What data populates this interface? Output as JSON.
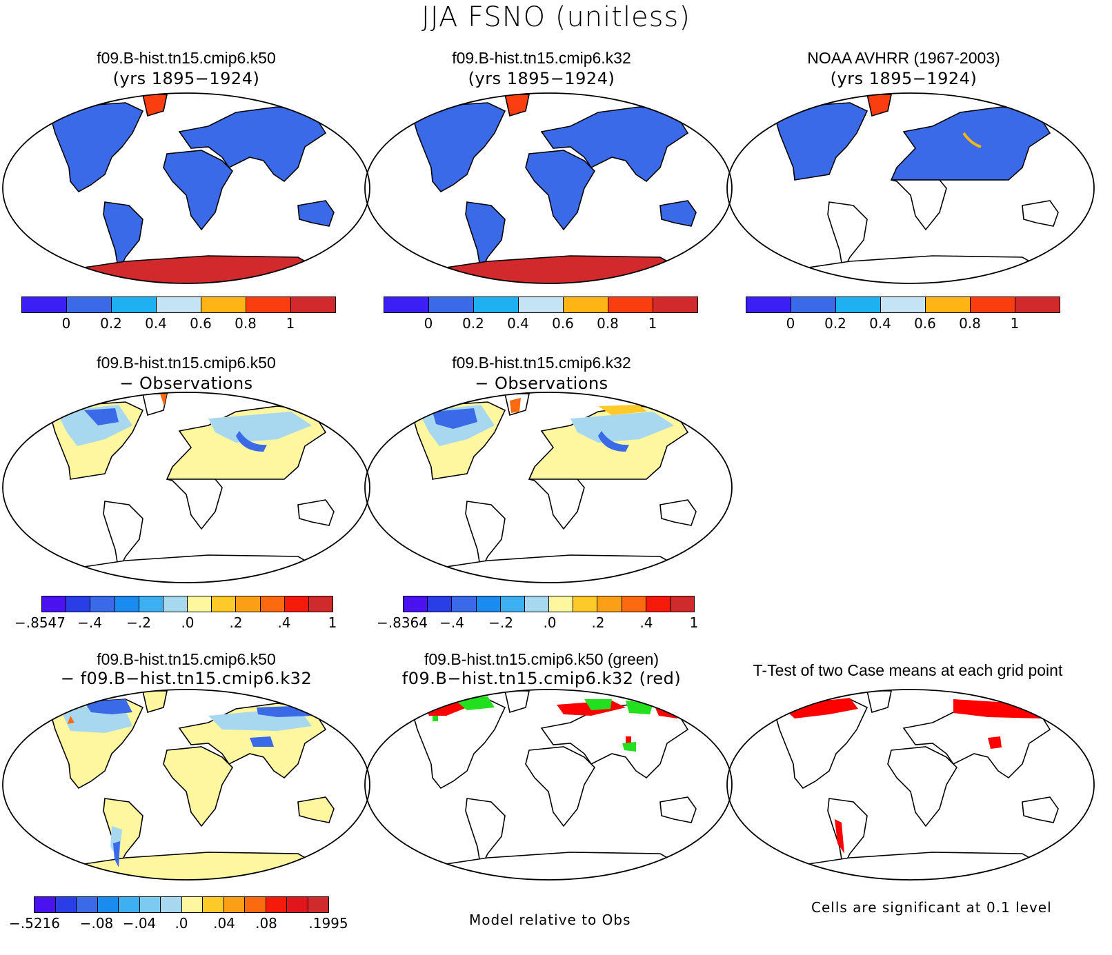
{
  "title": "JJA FSNO (unitless)",
  "panels": [
    {
      "line1": "f09.B-hist.tn15.cmip6.k50",
      "line2": "(yrs 1895−1924)"
    },
    {
      "line1": "f09.B-hist.tn15.cmip6.k32",
      "line2": "(yrs 1895−1924)"
    },
    {
      "line1": "NOAA AVHRR (1967-2003)",
      "line2": "(yrs 1895−1924)"
    },
    {
      "line1": "f09.B-hist.tn15.cmip6.k50",
      "line2": "− Observations"
    },
    {
      "line1": "f09.B-hist.tn15.cmip6.k32",
      "line2": "− Observations"
    },
    {
      "line1": "f09.B-hist.tn15.cmip6.k50",
      "line2": "− f09.B−hist.tn15.cmip6.k32"
    },
    {
      "line1": "f09.B-hist.tn15.cmip6.k50 (green)",
      "line2": "f09.B−hist.tn15.cmip6.k32 (red)"
    },
    {
      "line1": "T-Test of two Case means at each grid point",
      "line2": ""
    }
  ],
  "colorbars": {
    "abs": {
      "colors": [
        "#3b1ff5",
        "#3a6ae8",
        "#1eb0f0",
        "#c4e4f4",
        "#fdb515",
        "#fb3e0f",
        "#d1292c"
      ],
      "ticks": [
        "0",
        "0.2",
        "0.4",
        "0.6",
        "0.8",
        "1"
      ]
    },
    "diff1": {
      "colors": [
        "#4b12f0",
        "#2a3ee8",
        "#3a6ae8",
        "#1a8cf0",
        "#3cb0f0",
        "#a8d8f0",
        "#fff6a0",
        "#fdca2a",
        "#fb9f16",
        "#fb6a0e",
        "#f51a0a",
        "#cf2a2c"
      ],
      "ticks": [
        "−.8547",
        "−.4",
        "−.2",
        ".0",
        ".2",
        ".4",
        "1"
      ]
    },
    "diff2": {
      "colors": [
        "#4b12f0",
        "#2a3ee8",
        "#3a6ae8",
        "#1a8cf0",
        "#3cb0f0",
        "#a8d8f0",
        "#fff6a0",
        "#fdca2a",
        "#fb9f16",
        "#fb6a0e",
        "#f51a0a",
        "#cf2a2c"
      ],
      "ticks": [
        "−.8364",
        "−.4",
        "−.2",
        ".0",
        ".2",
        ".4",
        "1"
      ]
    },
    "diff3": {
      "colors": [
        "#4b12f0",
        "#2a3ee8",
        "#3a6ae8",
        "#1a8cf0",
        "#3cb0f0",
        "#7ccaf0",
        "#a8d8f0",
        "#fff6a0",
        "#fdca2a",
        "#fb9f16",
        "#fb6a0e",
        "#f51a0a",
        "#e0161a",
        "#cf2a2c"
      ],
      "ticks": [
        "−.5216",
        "−.08",
        "−.04",
        ".0",
        ".04",
        ".08",
        ".1995"
      ]
    }
  },
  "footer": {
    "middle": "Model relative to Obs",
    "right": "Cells are significant at 0.1 level"
  },
  "map_fills": {
    "land_blue": "#3a6ae8",
    "ice_red": "#d1292c",
    "greenland_orange": "#fb3e0f",
    "diff_yellow": "#fff6a0",
    "diff_lightblue": "#a8d8f0",
    "diff_blue": "#3a6ae8",
    "sig_green": "#22e01e",
    "sig_red": "#ff0000"
  }
}
